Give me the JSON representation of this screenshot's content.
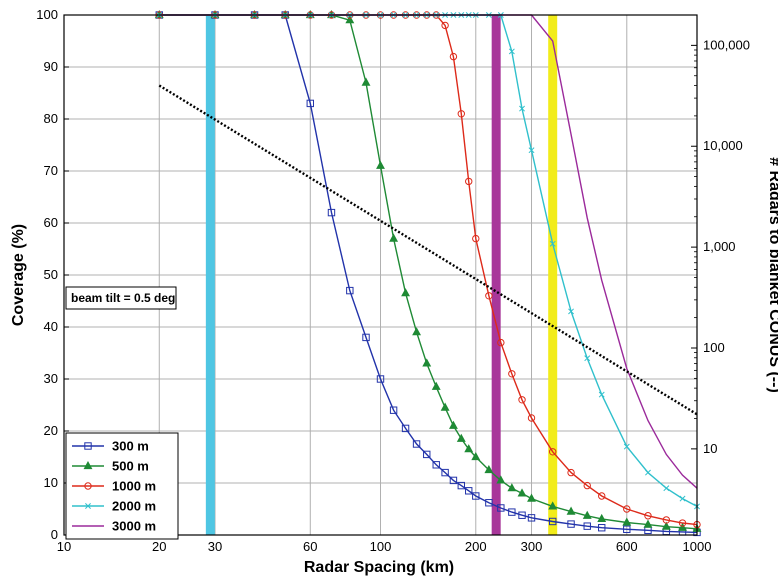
{
  "chart_data": {
    "type": "line",
    "xlabel": "Radar Spacing (km)",
    "ylabel": "Coverage (%)",
    "ylabel_right": "# Radars to blanket CONUS (--)",
    "x_scale": "log",
    "xlim": [
      10,
      1000
    ],
    "ylim": [
      0,
      100
    ],
    "y2_scale": "log",
    "y2lim": [
      1.4,
      200000
    ],
    "x_ticks": [
      "10",
      "20",
      "30",
      "60",
      "100",
      "200",
      "300",
      "600",
      "1000"
    ],
    "x_tick_values": [
      10,
      20,
      30,
      60,
      100,
      200,
      300,
      600,
      1000
    ],
    "y_ticks": [
      "0",
      "10",
      "20",
      "30",
      "40",
      "50",
      "60",
      "70",
      "80",
      "90",
      "100"
    ],
    "y2_ticks": [
      "10",
      "100",
      "1,000",
      "10,000",
      "100,000"
    ],
    "y2_tick_values": [
      10,
      100,
      1000,
      10000,
      100000
    ],
    "grid": true,
    "legend_position": "bottom-left",
    "annotation": "beam tilt = 0.5 deg",
    "series": [
      {
        "name": "300 m",
        "color": "#2233aa",
        "marker": "square",
        "x": [
          20,
          30,
          40,
          50,
          60,
          70,
          80,
          90,
          100,
          110,
          120,
          130,
          140,
          150,
          160,
          170,
          180,
          190,
          200,
          220,
          240,
          260,
          280,
          300,
          350,
          400,
          450,
          500,
          600,
          700,
          800,
          900,
          1000
        ],
        "y": [
          100,
          100,
          100,
          100,
          83,
          62,
          47,
          38,
          30,
          24,
          20.5,
          17.5,
          15.5,
          13.5,
          12,
          10.5,
          9.5,
          8.5,
          7.5,
          6.2,
          5.2,
          4.4,
          3.8,
          3.3,
          2.6,
          2.1,
          1.7,
          1.4,
          1.1,
          0.9,
          0.7,
          0.6,
          0.5
        ]
      },
      {
        "name": "500 m",
        "color": "#1f8a35",
        "marker": "triangle",
        "x": [
          20,
          30,
          40,
          50,
          60,
          70,
          80,
          90,
          100,
          110,
          120,
          130,
          140,
          150,
          160,
          170,
          180,
          190,
          200,
          220,
          240,
          260,
          280,
          300,
          350,
          400,
          450,
          500,
          600,
          700,
          800,
          900,
          1000
        ],
        "y": [
          100,
          100,
          100,
          100,
          100,
          100,
          99,
          87,
          71,
          57,
          46.5,
          39,
          33,
          28.5,
          24.5,
          21,
          18.5,
          16.5,
          15,
          12.5,
          10.5,
          9,
          8,
          7,
          5.5,
          4.5,
          3.7,
          3.1,
          2.4,
          2,
          1.6,
          1.4,
          1.2
        ]
      },
      {
        "name": "1000 m",
        "color": "#dd2a1a",
        "marker": "circle",
        "x": [
          20,
          30,
          40,
          50,
          60,
          70,
          80,
          90,
          100,
          110,
          120,
          130,
          140,
          150,
          160,
          170,
          180,
          190,
          200,
          220,
          240,
          260,
          280,
          300,
          350,
          400,
          450,
          500,
          600,
          700,
          800,
          900,
          1000
        ],
        "y": [
          100,
          100,
          100,
          100,
          100,
          100,
          100,
          100,
          100,
          100,
          100,
          100,
          100,
          100,
          98,
          92,
          81,
          68,
          57,
          46,
          37,
          31,
          26,
          22.5,
          16,
          12,
          9.5,
          7.5,
          5,
          3.7,
          2.9,
          2.3,
          2
        ]
      },
      {
        "name": "2000 m",
        "color": "#30c0cc",
        "marker": "x",
        "x": [
          20,
          30,
          40,
          50,
          60,
          70,
          80,
          90,
          100,
          110,
          120,
          130,
          140,
          150,
          160,
          170,
          180,
          190,
          200,
          220,
          240,
          260,
          280,
          300,
          350,
          400,
          450,
          500,
          600,
          700,
          800,
          900,
          1000
        ],
        "y": [
          100,
          100,
          100,
          100,
          100,
          100,
          100,
          100,
          100,
          100,
          100,
          100,
          100,
          100,
          100,
          100,
          100,
          100,
          100,
          100,
          100,
          93,
          82,
          74,
          56,
          43,
          34,
          27,
          17,
          12,
          9,
          7,
          5.5
        ]
      },
      {
        "name": "3000 m",
        "color": "#9b2a9b",
        "marker": "none",
        "x": [
          20,
          30,
          40,
          50,
          60,
          70,
          80,
          90,
          100,
          110,
          120,
          130,
          140,
          150,
          160,
          170,
          180,
          190,
          200,
          220,
          240,
          260,
          280,
          300,
          350,
          400,
          450,
          500,
          600,
          700,
          800,
          900,
          1000
        ],
        "y": [
          100,
          100,
          100,
          100,
          100,
          100,
          100,
          100,
          100,
          100,
          100,
          100,
          100,
          100,
          100,
          100,
          100,
          100,
          100,
          100,
          100,
          100,
          100,
          100,
          95,
          77,
          61,
          49,
          32,
          22,
          15.5,
          11.5,
          9
        ]
      }
    ],
    "radar_count_line": {
      "axis": "right",
      "style": "dotted",
      "color": "#000000",
      "x": [
        20,
        1000
      ],
      "y": [
        40000,
        22
      ]
    },
    "vertical_bands": [
      {
        "x": 29,
        "color": "#4fc6e3"
      },
      {
        "x": 232,
        "color": "#a8379a"
      },
      {
        "x": 350,
        "color": "#f2ec1a"
      }
    ]
  }
}
